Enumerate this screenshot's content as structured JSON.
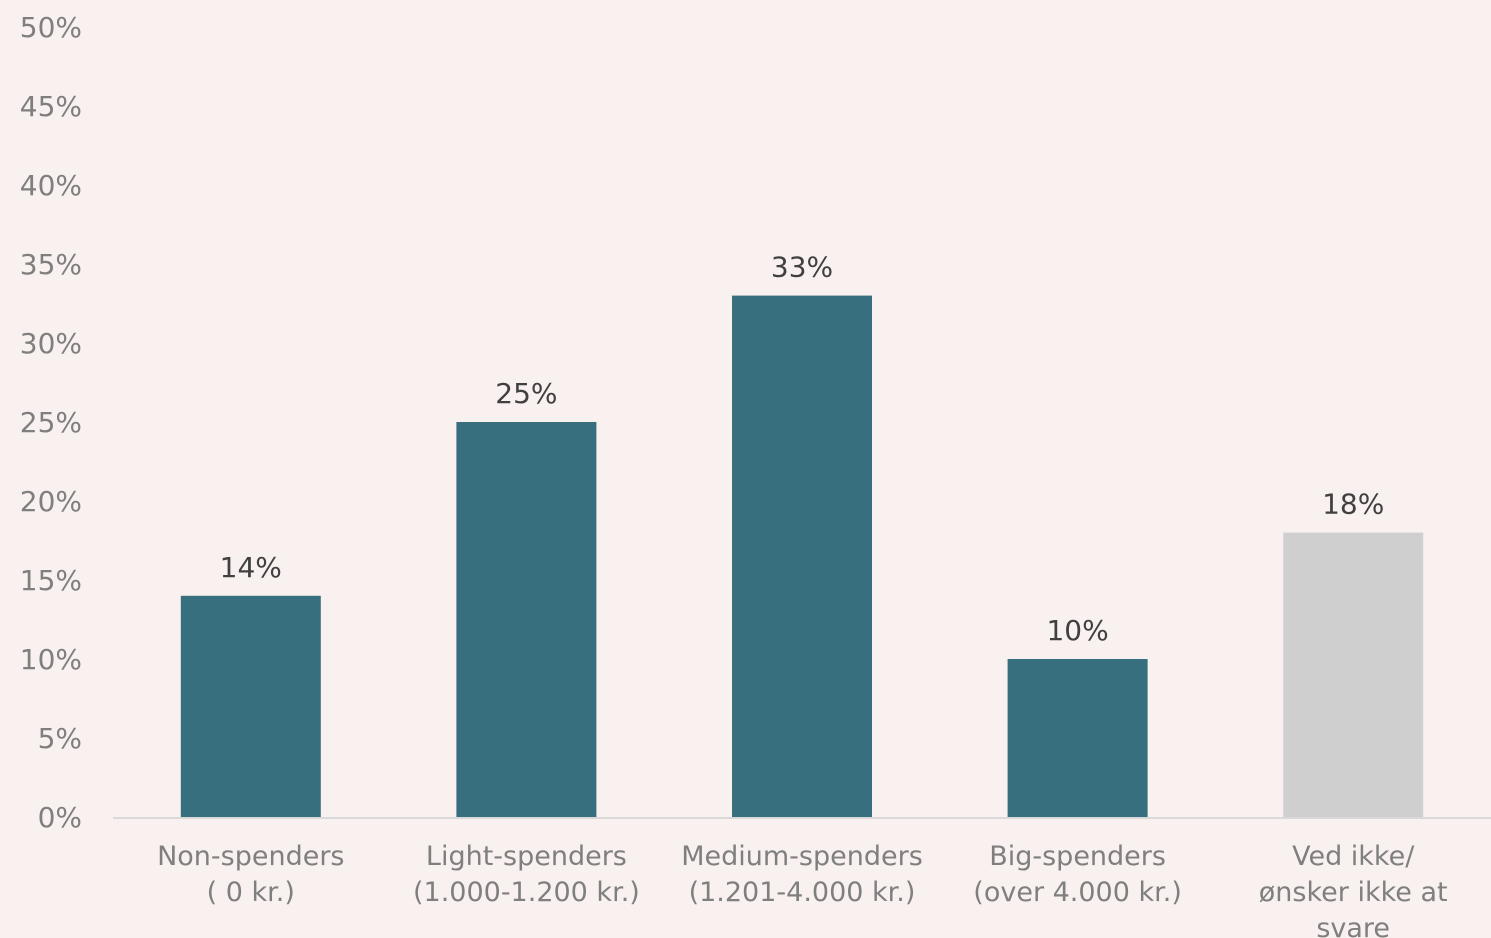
{
  "chart_data": {
    "type": "bar",
    "categories": [
      [
        "Non-spenders",
        "( 0 kr.)"
      ],
      [
        "Light-spenders",
        "(1.000-1.200 kr.)"
      ],
      [
        "Medium-spenders",
        "(1.201-4.000 kr.)"
      ],
      [
        "Big-spenders",
        "(over 4.000 kr.)"
      ],
      [
        "Ved ikke/",
        "ønsker ikke at",
        "svare"
      ]
    ],
    "values": [
      14,
      25,
      33,
      10,
      18
    ],
    "data_labels": [
      "14%",
      "25%",
      "33%",
      "10%",
      "18%"
    ],
    "bar_colors": [
      "#386f7e",
      "#386f7e",
      "#386f7e",
      "#386f7e",
      "#d0cfd0"
    ],
    "ylim": [
      0,
      50
    ],
    "y_ticks": [
      0,
      5,
      10,
      15,
      20,
      25,
      30,
      35,
      40,
      45,
      50
    ],
    "y_tick_labels": [
      "0%",
      "5%",
      "10%",
      "15%",
      "20%",
      "25%",
      "30%",
      "35%",
      "40%",
      "45%",
      "50%"
    ],
    "grid": false,
    "title": "",
    "xlabel": "",
    "ylabel": ""
  },
  "colors": {
    "background": "#f9f1ef",
    "axis_line": "#d9d9d9",
    "primary_bar": "#386f7e",
    "secondary_bar": "#d0cfd0"
  }
}
